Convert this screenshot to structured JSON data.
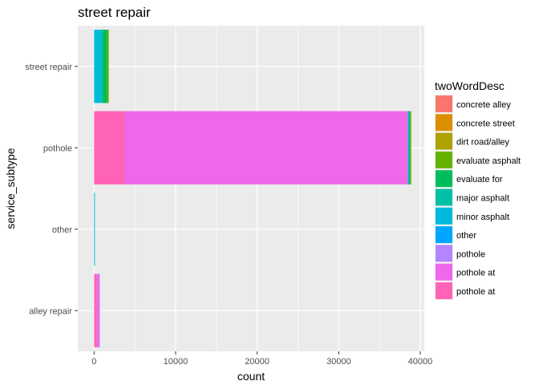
{
  "chart_data": {
    "type": "bar",
    "orientation": "horizontal",
    "stacked": true,
    "title": "street repair",
    "xlabel": "count",
    "ylabel": "service_subtype",
    "xlim": [
      -2000,
      40500
    ],
    "xticks": [
      0,
      10000,
      20000,
      30000,
      40000
    ],
    "xtick_labels": [
      "0",
      "10000",
      "20000",
      "30000",
      "40000"
    ],
    "categories": [
      "street repair",
      "pothole",
      "other",
      "alley repair"
    ],
    "legend_title": "twoWordDesc",
    "legend_position": "right",
    "grid": true,
    "series": [
      {
        "name": "concrete alley",
        "color": "#F8766D",
        "values": [
          0,
          0,
          0,
          0
        ]
      },
      {
        "name": "concrete street",
        "color": "#DB8E00",
        "values": [
          0,
          0,
          0,
          0
        ]
      },
      {
        "name": "dirt road/alley",
        "color": "#AEA200",
        "values": [
          0,
          0,
          0,
          0
        ]
      },
      {
        "name": "evaluate asphalt",
        "color": "#64B200",
        "values": [
          200,
          150,
          0,
          0
        ]
      },
      {
        "name": "evaluate for",
        "color": "#00BD5C",
        "values": [
          500,
          150,
          0,
          0
        ]
      },
      {
        "name": "major asphalt",
        "color": "#00C1A7",
        "values": [
          300,
          0,
          0,
          0
        ]
      },
      {
        "name": "minor asphalt",
        "color": "#00BADE",
        "values": [
          800,
          50,
          80,
          0
        ]
      },
      {
        "name": "other",
        "color": "#00A6FF",
        "values": [
          0,
          50,
          0,
          0
        ]
      },
      {
        "name": "pothole",
        "color": "#B385FF",
        "values": [
          0,
          50,
          0,
          100
        ]
      },
      {
        "name": "pothole  at",
        "color": "#EF67EB",
        "values": [
          0,
          34650,
          0,
          250
        ]
      },
      {
        "name": "pothole at",
        "color": "#FF63B6",
        "values": [
          0,
          3800,
          0,
          350
        ]
      }
    ]
  }
}
